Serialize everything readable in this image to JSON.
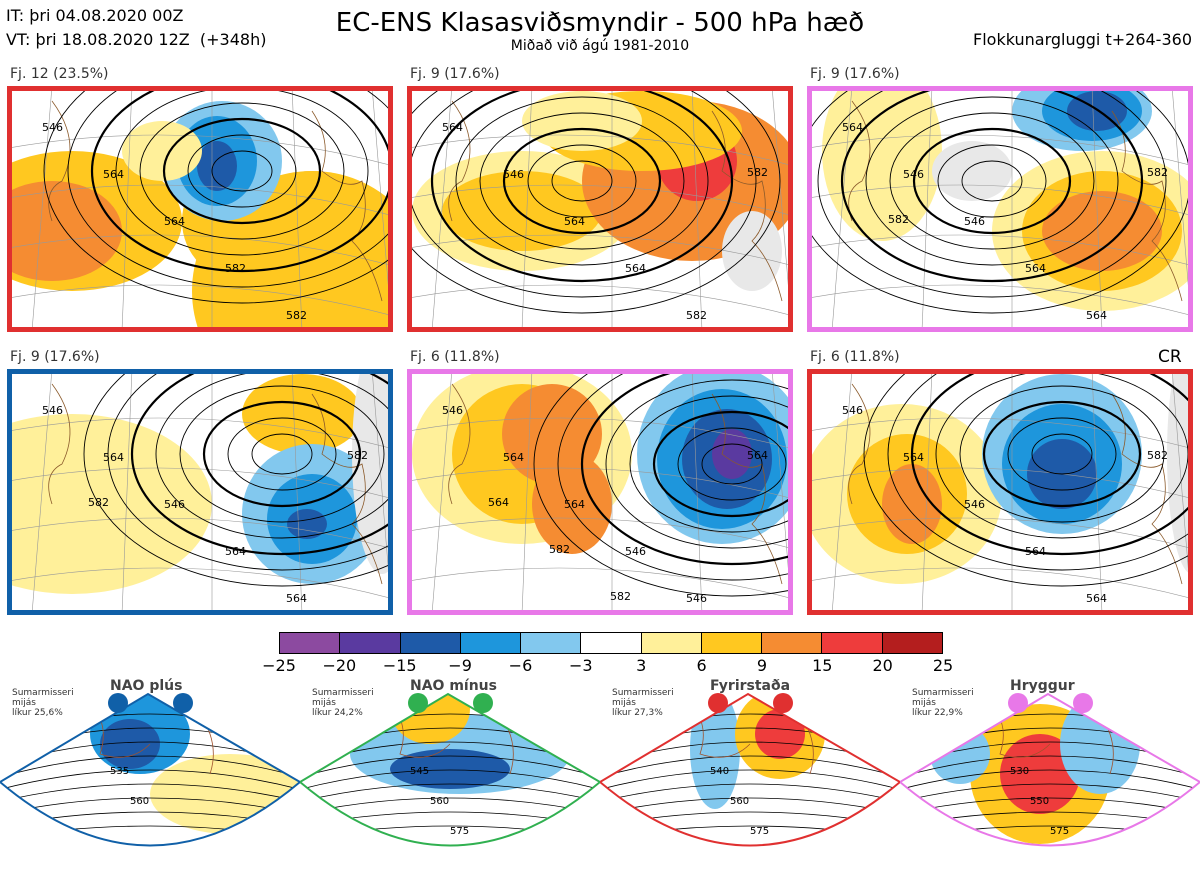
{
  "header": {
    "it_line": "IT: þri 04.08.2020 00Z",
    "vt_line": "VT: þri 18.08.2020 12Z  (+348h)",
    "title": "EC-ENS Klasasviðsmyndir - 500 hPa hæð",
    "subtitle": "Miðað við ágú 1981-2010",
    "window": "Flokkunargluggi t+264-360",
    "cr": "CR"
  },
  "panels": [
    {
      "label": "Fj. 12 (23.5%)",
      "regime": "Fyrirstaða",
      "border": "#e03030",
      "contour_labels": [
        "546",
        "564",
        "564",
        "582",
        "582"
      ]
    },
    {
      "label": "Fj. 9 (17.6%)",
      "regime": "Fyrirstaða",
      "border": "#e03030",
      "contour_labels": [
        "564",
        "546",
        "564",
        "564",
        "582",
        "582"
      ]
    },
    {
      "label": "Fj. 9 (17.6%)",
      "regime": "Hryggur",
      "border": "#e878e8",
      "contour_labels": [
        "564",
        "546",
        "546",
        "564",
        "564",
        "582",
        "582"
      ]
    },
    {
      "label": "Fj. 9 (17.6%)",
      "regime": "NAO plús",
      "border": "#1060a8",
      "contour_labels": [
        "546",
        "564",
        "546",
        "564",
        "564",
        "582",
        "582"
      ]
    },
    {
      "label": "Fj. 6 (11.8%)",
      "regime": "Hryggur",
      "border": "#e878e8",
      "contour_labels": [
        "546",
        "564",
        "564",
        "546",
        "546",
        "564",
        "564",
        "582",
        "582"
      ]
    },
    {
      "label": "Fj. 6 (11.8%)",
      "regime": "Fyrirstaða",
      "border": "#e03030",
      "contour_labels": [
        "546",
        "564",
        "546",
        "564",
        "564",
        "582"
      ]
    }
  ],
  "colorbar": {
    "colors": [
      "#8c4aa0",
      "#5a3aa0",
      "#1e5aa8",
      "#1e96dc",
      "#82c8ee",
      "#ffffff",
      "#fff09a",
      "#ffc820",
      "#f58c32",
      "#ee3c3c",
      "#b41e1e"
    ],
    "ticks": [
      "−25",
      "−20",
      "−15",
      "−9",
      "−6",
      "−3",
      "3",
      "6",
      "9",
      "15",
      "20",
      "25"
    ]
  },
  "regimes": [
    {
      "name": "NAO plús",
      "line1": "Sumarmisseri",
      "line2": "mijás",
      "line3": "líkur 25,6%",
      "color": "#1060a8",
      "contour_labels": [
        "535",
        "560"
      ]
    },
    {
      "name": "NAO mínus",
      "line1": "Sumarmisseri",
      "line2": "mijás",
      "line3": "líkur 24,2%",
      "color": "#30b050",
      "contour_labels": [
        "545",
        "560",
        "575"
      ]
    },
    {
      "name": "Fyrirstaða",
      "line1": "Sumarmisseri",
      "line2": "mijás",
      "line3": "líkur 27,3%",
      "color": "#e03030",
      "contour_labels": [
        "540",
        "560",
        "575"
      ]
    },
    {
      "name": "Hryggur",
      "line1": "Sumarmisseri",
      "line2": "mijás",
      "line3": "líkur 22,9%",
      "color": "#e878e8",
      "contour_labels": [
        "530",
        "550",
        "575"
      ]
    }
  ]
}
